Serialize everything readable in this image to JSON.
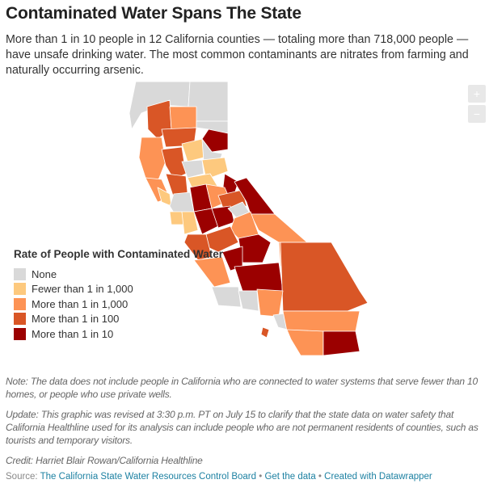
{
  "title": "Contaminated Water Spans The State",
  "description": "More than 1 in 10 people in 12 California counties — totaling more than 718,000 people — have unsafe drinking water. The most common contaminants are nitrates from farming and naturally occurring arsenic.",
  "zoom_controls": {
    "zoom_in": "+",
    "zoom_out": "−"
  },
  "legend": {
    "title": "Rate of People with Contaminated Water",
    "items": [
      {
        "label": "None",
        "color": "#d9d9d9"
      },
      {
        "label": "Fewer than 1 in 1,000",
        "color": "#fdc97e"
      },
      {
        "label": "More than 1 in 1,000",
        "color": "#fd9355"
      },
      {
        "label": "More than 1 in 100",
        "color": "#d95626"
      },
      {
        "label": "More than 1 in 10",
        "color": "#9b0000"
      }
    ]
  },
  "notes": {
    "note": "Note: The data does not include people in California who are connected to water systems that serve fewer than 10 homes, or people who use private wells.",
    "update": "Update: This graphic was revised at 3:30 p.m. PT on July 15 to clarify that the state data on water safety that California Healthline used for its analysis can include people who are not permanent residents of counties, such as tourists and temporary visitors.",
    "credit": "Credit: Harriet Blair Rowan/California Healthline"
  },
  "source": {
    "prefix": "Source: ",
    "link": "The California State Water Resources Control Board",
    "sep1": " • ",
    "get_data": "Get the data",
    "sep2": " • ",
    "created": "Created with Datawrapper"
  }
}
